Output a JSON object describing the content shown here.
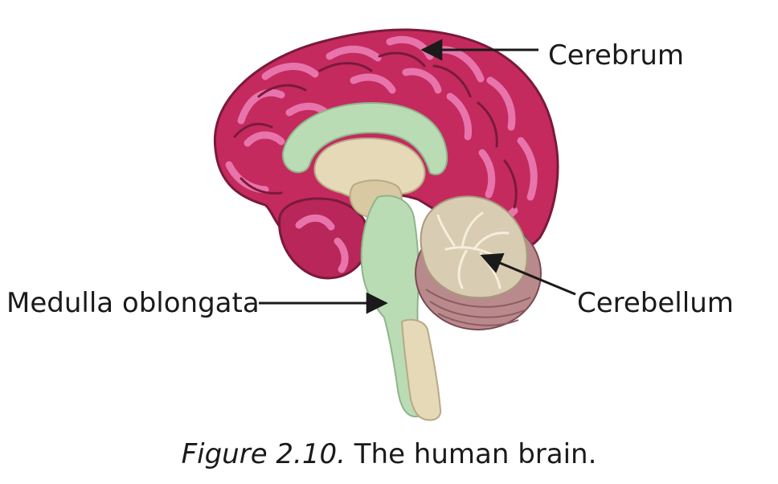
{
  "labels": {
    "cerebrum": "Cerebrum",
    "medulla": "Medulla oblongata",
    "cerebellum": "Cerebellum"
  },
  "caption": {
    "figure_number": "Figure 2.10.",
    "text": "The human brain."
  },
  "colors": {
    "cerebrum": "#c42a5e",
    "cerebrum_highlight": "#e874ac",
    "cerebrum_dark": "#7a1a3b",
    "white_matter": "#b9dcb4",
    "brainstem_tan": "#e6d9b8",
    "cerebellum_tan": "#d8ccb2",
    "cerebellum_base": "#b88a8c",
    "arrow": "#1a1a1a"
  }
}
